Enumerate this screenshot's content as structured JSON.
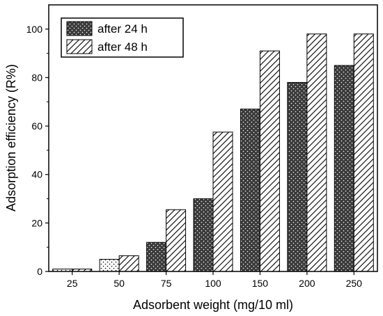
{
  "chart_data": {
    "type": "bar",
    "categories": [
      "25",
      "50",
      "75",
      "100",
      "150",
      "200",
      "250"
    ],
    "series": [
      {
        "name": "after 24 h",
        "values": [
          1,
          5,
          12,
          30,
          67,
          78,
          85
        ],
        "pattern": "dots"
      },
      {
        "name": "after 48 h",
        "values": [
          1,
          6.5,
          25.5,
          57.5,
          91,
          98,
          98
        ],
        "pattern": "hatch"
      }
    ],
    "xlabel": "Adsorbent weight (mg/10 ml)",
    "ylabel": "Adsorption efficiency (R%)",
    "ylim": [
      0,
      110
    ],
    "yticks": [
      0,
      20,
      40,
      60,
      80,
      100
    ],
    "grid": false,
    "legend_position": "top-left",
    "colors": {
      "dark_bar": "#3a3a3a",
      "hatch_fill": "#ffffff",
      "hatch_line": "#000000",
      "axis": "#000000"
    }
  }
}
